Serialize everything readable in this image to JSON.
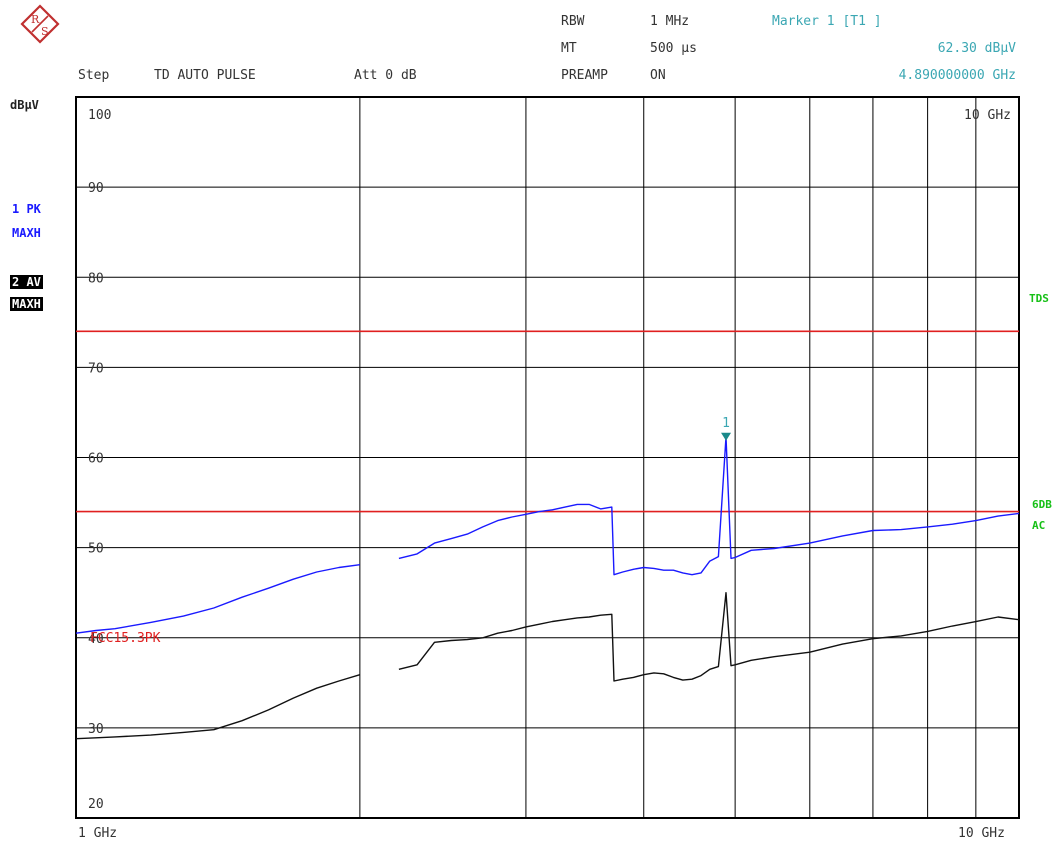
{
  "header": {
    "step_label": "Step",
    "mode": "TD AUTO PULSE",
    "att": "Att 0 dB",
    "rbw_label": "RBW",
    "rbw_value": "1 MHz",
    "mt_label": "MT",
    "mt_value": "500 µs",
    "preamp_label": "PREAMP",
    "preamp_value": "ON",
    "marker_title": "Marker 1 [T1 ]",
    "marker_level": "62.30 dBµV",
    "marker_freq": "4.890000000 GHz"
  },
  "left_panel": {
    "unit": "dBµV",
    "trace1_a": "1 PK",
    "trace1_b": "MAXH",
    "trace2_a": "2 AV",
    "trace2_b": "MAXH"
  },
  "right_panel": {
    "tds": "TDS",
    "sixdb": "6DB",
    "ac": "AC"
  },
  "logo": {
    "icon": "rohde-schwarz-logo",
    "text": "R S"
  },
  "colors": {
    "peak_trace": "#1a1aff",
    "avg_trace": "#111111",
    "limit_line": "#e02020",
    "marker": "#1a8a8a",
    "grid": "#000000"
  },
  "chart_data": {
    "type": "line",
    "x_scale": "log",
    "xlim": [
      1,
      10
    ],
    "ylim": [
      20,
      100
    ],
    "x_unit": "GHz",
    "x_start_label": "1 GHz",
    "x_stop_label": "10 GHz",
    "x_top_right_label": "10 GHz",
    "y_ticks": [
      100,
      90,
      80,
      70,
      60,
      50,
      40,
      30,
      20
    ],
    "grid": true,
    "limit_lines": [
      {
        "name": "TDS",
        "value": 74
      },
      {
        "name": "FCC15.3PK",
        "value": 54
      }
    ],
    "limit_label_text": "FCC15.3PK",
    "marker": {
      "label": "1",
      "x": 4.89,
      "y": 62.3
    },
    "series": [
      {
        "name": "1 PK",
        "x": [
          1.0,
          1.05,
          1.1,
          1.2,
          1.3,
          1.4,
          1.5,
          1.6,
          1.7,
          1.8,
          1.9,
          2.0,
          2.1,
          2.2,
          2.3,
          2.4,
          2.5,
          2.6,
          2.7,
          2.8,
          2.9,
          3.0,
          3.1,
          3.2,
          3.3,
          3.4,
          3.5,
          3.6,
          3.7,
          3.72,
          3.8,
          3.9,
          4.0,
          4.1,
          4.2,
          4.3,
          4.4,
          4.5,
          4.6,
          4.7,
          4.8,
          4.89,
          4.95,
          5.0,
          5.2,
          5.5,
          6.0,
          6.5,
          7.0,
          7.5,
          8.0,
          8.5,
          9.0,
          9.5,
          10.0
        ],
        "values": [
          40.5,
          40.8,
          41.0,
          41.7,
          42.4,
          43.3,
          44.5,
          45.5,
          46.5,
          47.3,
          47.8,
          48.1,
          null,
          48.8,
          49.3,
          50.5,
          51.0,
          51.5,
          52.3,
          53.0,
          53.4,
          53.7,
          54.0,
          54.2,
          54.5,
          54.8,
          54.8,
          54.3,
          54.5,
          47.0,
          47.3,
          47.6,
          47.8,
          47.7,
          47.5,
          47.5,
          47.2,
          47.0,
          47.2,
          48.5,
          49.0,
          62.3,
          48.8,
          48.9,
          49.7,
          49.9,
          50.5,
          51.3,
          51.9,
          52.0,
          52.3,
          52.6,
          53.0,
          53.5,
          53.8
        ]
      },
      {
        "name": "2 AV",
        "x": [
          1.0,
          1.05,
          1.1,
          1.2,
          1.3,
          1.4,
          1.5,
          1.6,
          1.7,
          1.8,
          1.9,
          2.0,
          2.1,
          2.2,
          2.3,
          2.4,
          2.5,
          2.6,
          2.7,
          2.8,
          2.9,
          3.0,
          3.1,
          3.2,
          3.3,
          3.4,
          3.5,
          3.6,
          3.7,
          3.72,
          3.8,
          3.9,
          4.0,
          4.1,
          4.2,
          4.3,
          4.4,
          4.5,
          4.6,
          4.7,
          4.8,
          4.89,
          4.95,
          5.0,
          5.2,
          5.5,
          6.0,
          6.5,
          7.0,
          7.5,
          8.0,
          8.5,
          9.0,
          9.5,
          10.0
        ],
        "values": [
          28.8,
          28.9,
          29.0,
          29.2,
          29.5,
          29.8,
          30.8,
          32.0,
          33.3,
          34.4,
          35.2,
          35.9,
          null,
          36.5,
          37.0,
          39.5,
          39.7,
          39.8,
          40.0,
          40.5,
          40.8,
          41.2,
          41.5,
          41.8,
          42.0,
          42.2,
          42.3,
          42.5,
          42.6,
          35.2,
          35.4,
          35.6,
          35.9,
          36.1,
          36.0,
          35.6,
          35.3,
          35.4,
          35.8,
          36.5,
          36.8,
          45.0,
          36.9,
          37.0,
          37.5,
          37.9,
          38.4,
          39.3,
          39.9,
          40.2,
          40.7,
          41.3,
          41.8,
          42.3,
          42.0
        ]
      }
    ]
  }
}
